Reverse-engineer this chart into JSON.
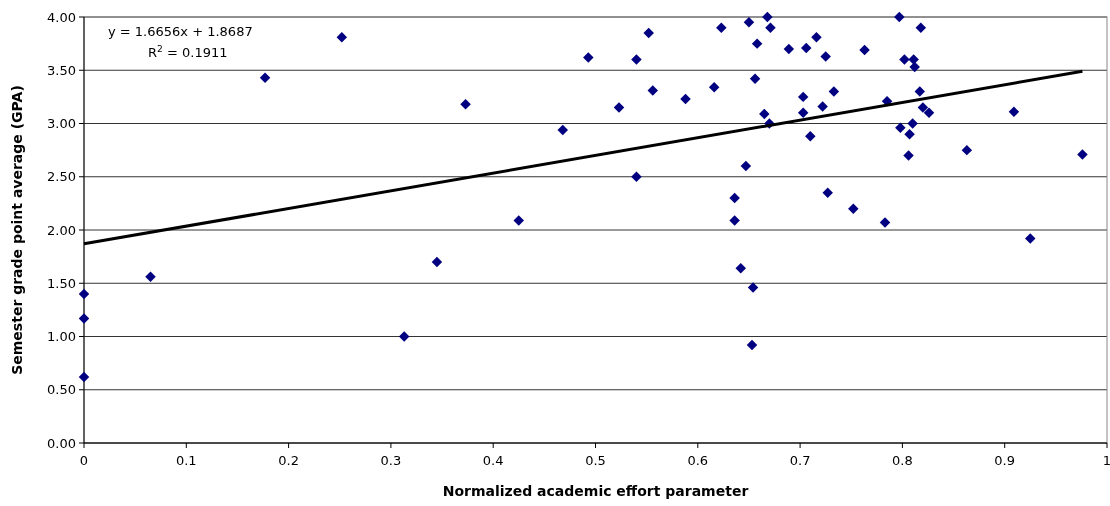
{
  "chart_data": {
    "type": "scatter",
    "xlabel": "Normalized academic effort parameter",
    "ylabel": "Semester grade point average (GPA)",
    "annotations": [
      "y = 1.6656x + 1.8687",
      "R$^{2}$ = 0.1911"
    ],
    "xlim": [
      0,
      1
    ],
    "xticks": [
      0,
      0.1,
      0.2,
      0.3,
      0.4,
      0.5,
      0.6,
      0.7,
      0.8,
      0.9,
      1
    ],
    "ylim": [
      0,
      4
    ],
    "yticks": [
      {
        "value": 0,
        "label": "0.00"
      },
      {
        "value": 0.5,
        "label": "0.50"
      },
      {
        "value": 1,
        "label": "1.00"
      },
      {
        "value": 1.5,
        "label": "1.50"
      },
      {
        "value": 2,
        "label": "2.00"
      },
      {
        "value": 2.5,
        "label": "2.50"
      },
      {
        "value": 3,
        "label": "3.00"
      },
      {
        "value": 3.5,
        "label": "3.50"
      },
      {
        "value": 4,
        "label": "4.00"
      }
    ],
    "grid": "y",
    "marker": "diamond",
    "series": [
      {
        "color": "#000080",
        "x": [
          0,
          0,
          0,
          0.065,
          0.177,
          0.252,
          0.313,
          0.345,
          0.373,
          0.425,
          0.468,
          0.493,
          0.523,
          0.54,
          0.54,
          0.552,
          0.556,
          0.588,
          0.616,
          0.623,
          0.636,
          0.636,
          0.642,
          0.647,
          0.65,
          0.653,
          0.654,
          0.656,
          0.658,
          0.665,
          0.668,
          0.67,
          0.671,
          0.689,
          0.703,
          0.703,
          0.706,
          0.71,
          0.716,
          0.722,
          0.725,
          0.727,
          0.733,
          0.752,
          0.763,
          0.783,
          0.785,
          0.797,
          0.798,
          0.802,
          0.806,
          0.807,
          0.81,
          0.811,
          0.812,
          0.817,
          0.818,
          0.82,
          0.826,
          0.863,
          0.909,
          0.925,
          0.976
        ],
        "values": [
          1.4,
          1.17,
          0.62,
          1.56,
          3.43,
          3.81,
          1.0,
          1.7,
          3.18,
          2.09,
          2.94,
          3.62,
          3.15,
          3.6,
          2.5,
          3.85,
          3.31,
          3.23,
          3.34,
          3.9,
          2.3,
          2.09,
          1.64,
          2.6,
          3.95,
          0.92,
          1.46,
          3.42,
          3.75,
          3.09,
          4.0,
          3.0,
          3.9,
          3.7,
          3.25,
          3.1,
          3.71,
          2.88,
          3.81,
          3.16,
          3.63,
          2.35,
          3.3,
          2.2,
          3.69,
          2.07,
          3.21,
          4.0,
          2.96,
          3.6,
          2.7,
          2.9,
          3.0,
          3.6,
          3.53,
          3.3,
          3.9,
          3.15,
          3.1,
          2.75,
          3.11,
          1.92,
          2.71
        ]
      },
      {
        "type": "line",
        "color": "#000000",
        "line_style": "solid",
        "marker": "none",
        "x": [
          0,
          0.976
        ],
        "values": [
          1.87,
          3.49
        ]
      }
    ]
  }
}
